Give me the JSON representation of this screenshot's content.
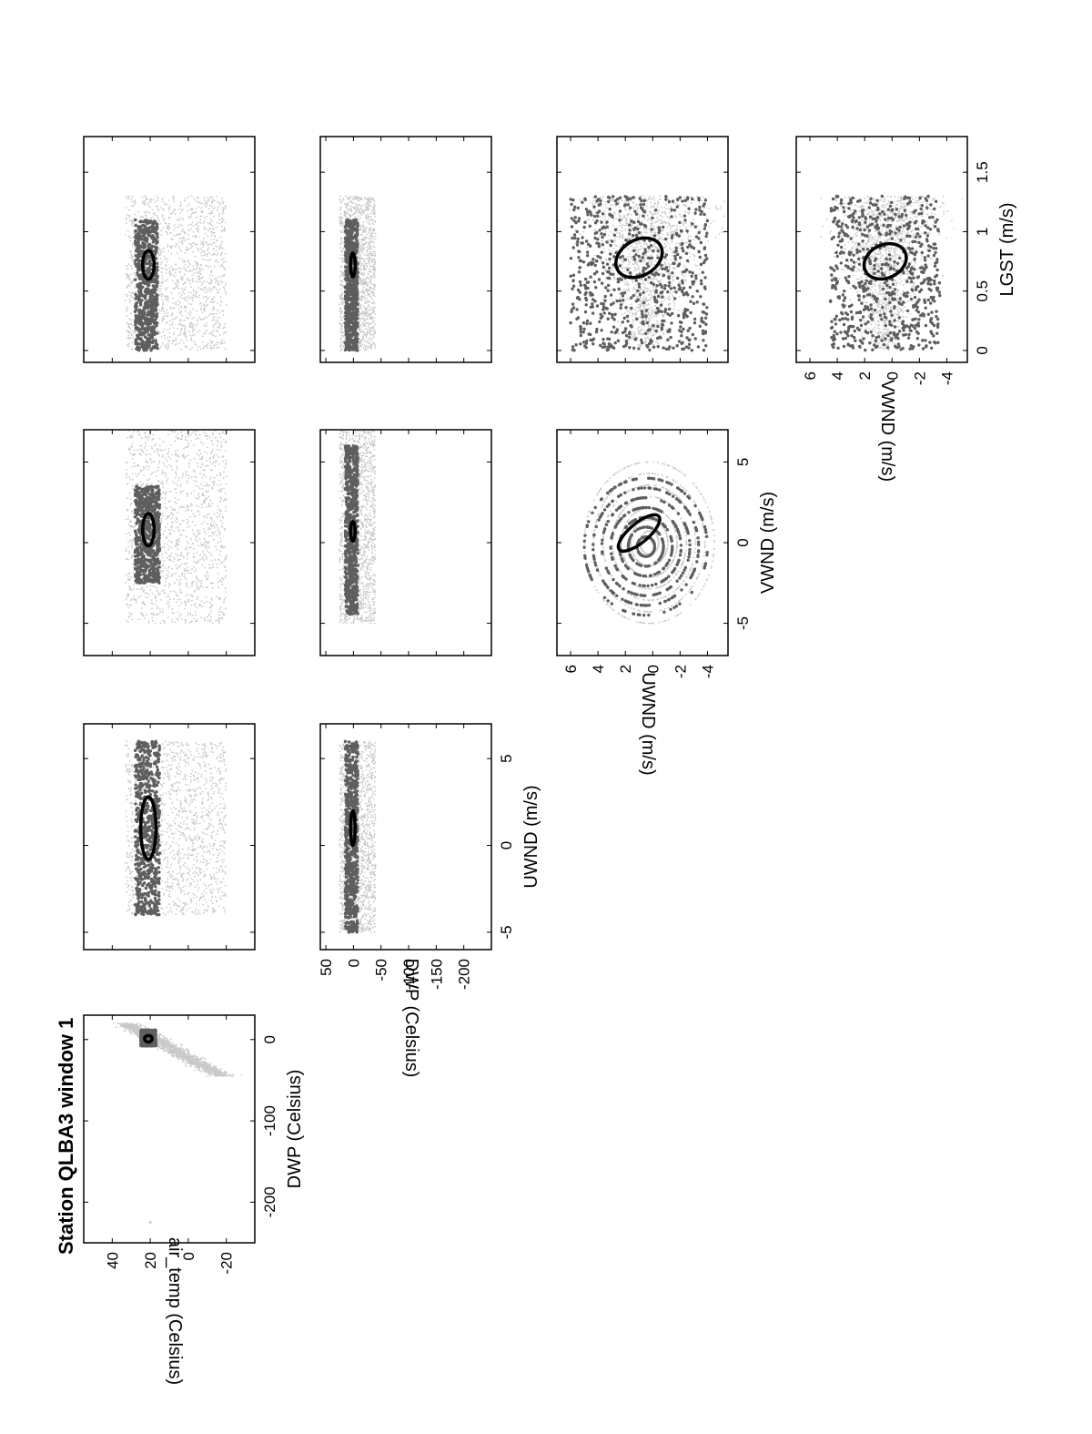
{
  "figure": {
    "title": "Station QLBA3 window 1",
    "orientation": "rotated 90° counter-clockwise (landscape page)",
    "colors": {
      "all_points": "#c8c8c8",
      "core_points": "#5e5e5e",
      "ellipse": "#000000",
      "axes": "#000000"
    }
  },
  "chart_data": [
    {
      "id": "dwp_vs_air_temp",
      "type": "scatter",
      "xlabel": "DWP (Celsius)",
      "ylabel": "air_temp (Celsius)",
      "xticks": [
        -200,
        -100,
        0
      ],
      "yticks": [
        -20,
        0,
        20,
        40
      ],
      "xlim": [
        -250,
        30
      ],
      "ylim": [
        -35,
        55
      ],
      "clusters": {
        "all_points": {
          "x_range": [
            -45,
            20
          ],
          "y_range": [
            -18,
            33
          ],
          "trend": "positive"
        },
        "core_points": {
          "x_range": [
            -8,
            12
          ],
          "y_range": [
            17,
            25
          ]
        },
        "outliers": [
          {
            "x": -225,
            "y": 20
          }
        ]
      },
      "ellipse": {
        "center": [
          1,
          21
        ],
        "semi_x": 4,
        "semi_y": 2
      }
    },
    {
      "id": "uwnd_vs_air_temp",
      "type": "scatter",
      "xlabel": "",
      "ylabel": "",
      "xticks": [
        -5,
        0,
        5
      ],
      "yticks": [
        -20,
        0,
        20,
        40
      ],
      "xlim": [
        -6,
        7
      ],
      "ylim": [
        -35,
        55
      ],
      "clusters": {
        "all_points": {
          "x_range": [
            -4,
            6
          ],
          "y_range": [
            -20,
            33
          ]
        },
        "core_points": {
          "x_range": [
            -4,
            6
          ],
          "y_range": [
            15,
            28
          ]
        }
      },
      "ellipse": {
        "center": [
          1,
          21
        ],
        "semi_x": 1.8,
        "semi_y": 4
      }
    },
    {
      "id": "vwnd_vs_air_temp",
      "type": "scatter",
      "xlabel": "",
      "ylabel": "",
      "xticks": [
        -5,
        0,
        5
      ],
      "yticks": [
        -20,
        0,
        20,
        40
      ],
      "xlim": [
        -7,
        7
      ],
      "ylim": [
        -35,
        55
      ],
      "clusters": {
        "all_points": {
          "x_range": [
            -5,
            7
          ],
          "y_range": [
            -20,
            33
          ]
        },
        "core_points": {
          "x_range": [
            -2.5,
            3.5
          ],
          "y_range": [
            15,
            28
          ]
        }
      },
      "ellipse": {
        "center": [
          0.8,
          21
        ],
        "semi_x": 1,
        "semi_y": 3
      }
    },
    {
      "id": "lgst_vs_air_temp",
      "type": "scatter",
      "xlabel": "",
      "ylabel": "",
      "xticks": [
        0,
        0.5,
        1,
        1.5
      ],
      "yticks": [
        -20,
        0,
        20,
        40
      ],
      "xlim": [
        -0.1,
        1.8
      ],
      "ylim": [
        -35,
        55
      ],
      "clusters": {
        "all_points": {
          "x_range": [
            0,
            1.3
          ],
          "y_range": [
            -20,
            33
          ]
        },
        "core_points": {
          "x_range": [
            0,
            1.1
          ],
          "y_range": [
            16,
            28
          ]
        }
      },
      "ellipse": {
        "center": [
          0.72,
          21
        ],
        "semi_x": 0.12,
        "semi_y": 3
      }
    },
    {
      "id": "uwnd_vs_dwp",
      "type": "scatter",
      "xlabel": "UWND (m/s)",
      "ylabel": "DWP (Celsius)",
      "xticks": [
        -5,
        0,
        5
      ],
      "yticks": [
        -200,
        -150,
        -100,
        -50,
        0,
        50
      ],
      "xlim": [
        -6,
        7
      ],
      "ylim": [
        -250,
        60
      ],
      "clusters": {
        "all_points": {
          "x_range": [
            -5,
            6
          ],
          "y_range": [
            -40,
            25
          ]
        },
        "core_points": {
          "x_range": [
            -5,
            6
          ],
          "y_range": [
            -8,
            15
          ]
        }
      },
      "ellipse": {
        "center": [
          1,
          1
        ],
        "semi_x": 1,
        "semi_y": 4
      }
    },
    {
      "id": "vwnd_vs_dwp",
      "type": "scatter",
      "xlabel": "",
      "ylabel": "",
      "xticks": [
        -5,
        0,
        5
      ],
      "yticks": [
        -200,
        -150,
        -100,
        -50,
        0,
        50
      ],
      "xlim": [
        -7,
        7
      ],
      "ylim": [
        -250,
        60
      ],
      "clusters": {
        "all_points": {
          "x_range": [
            -5,
            7
          ],
          "y_range": [
            -40,
            25
          ]
        },
        "core_points": {
          "x_range": [
            -4.5,
            6
          ],
          "y_range": [
            -8,
            15
          ]
        }
      },
      "ellipse": {
        "center": [
          0.7,
          1
        ],
        "semi_x": 0.6,
        "semi_y": 4
      }
    },
    {
      "id": "lgst_vs_dwp",
      "type": "scatter",
      "xlabel": "",
      "ylabel": "",
      "xticks": [
        0,
        0.5,
        1,
        1.5
      ],
      "yticks": [
        -200,
        -150,
        -100,
        -50,
        0,
        50
      ],
      "xlim": [
        -0.1,
        1.8
      ],
      "ylim": [
        -250,
        60
      ],
      "clusters": {
        "all_points": {
          "x_range": [
            0,
            1.3
          ],
          "y_range": [
            -40,
            25
          ]
        },
        "core_points": {
          "x_range": [
            0,
            1.1
          ],
          "y_range": [
            -8,
            15
          ]
        }
      },
      "ellipse": {
        "center": [
          0.72,
          1
        ],
        "semi_x": 0.1,
        "semi_y": 4
      }
    },
    {
      "id": "vwnd_vs_uwnd",
      "type": "scatter",
      "xlabel": "VWND (m/s)",
      "ylabel": "UWND (m/s)",
      "xticks": [
        -5,
        0,
        5
      ],
      "yticks": [
        -4,
        -2,
        0,
        2,
        4,
        6
      ],
      "xlim": [
        -7,
        7
      ],
      "ylim": [
        -5.5,
        7
      ],
      "clusters": {
        "all_points": {
          "x_range": [
            -5,
            5
          ],
          "y_range": [
            -4.5,
            5
          ],
          "shape": "concentric rings"
        },
        "core_points": {
          "x_range": [
            -4.5,
            4
          ],
          "y_range": [
            -4,
            5
          ]
        }
      },
      "ellipse": {
        "center": [
          0.6,
          1
        ],
        "semi_x": 1.6,
        "semi_y": 0.7,
        "tilt_deg": 50
      }
    },
    {
      "id": "lgst_vs_uwnd",
      "type": "scatter",
      "xlabel": "",
      "ylabel": "",
      "xticks": [
        0,
        0.5,
        1,
        1.5
      ],
      "yticks": [
        -4,
        -2,
        0,
        2,
        4,
        6
      ],
      "xlim": [
        -0.1,
        1.8
      ],
      "ylim": [
        -5.5,
        7
      ],
      "clusters": {
        "all_points": {
          "x_range": [
            0,
            1.3
          ],
          "y_range": [
            -5,
            6
          ],
          "trend": "wedge"
        },
        "core_points": {
          "x_range": [
            0,
            1.3
          ],
          "y_range": [
            -4,
            6
          ]
        }
      },
      "ellipse": {
        "center": [
          0.78,
          1
        ],
        "semi_x": 0.15,
        "semi_y": 1.8,
        "tilt_deg": -30
      }
    },
    {
      "id": "lgst_vs_vwnd",
      "type": "scatter",
      "xlabel": "LGST (m/s)",
      "ylabel": "VWND (m/s)",
      "xticks": [
        0,
        0.5,
        1,
        1.5
      ],
      "yticks": [
        -4,
        -2,
        0,
        2,
        4,
        6
      ],
      "xlim": [
        -0.1,
        1.8
      ],
      "ylim": [
        -5.5,
        7
      ],
      "clusters": {
        "all_points": {
          "x_range": [
            0,
            1.3
          ],
          "y_range": [
            -4,
            5
          ],
          "trend": "wedge"
        },
        "core_points": {
          "x_range": [
            0,
            1.3
          ],
          "y_range": [
            -3.5,
            4.5
          ]
        }
      },
      "ellipse": {
        "center": [
          0.75,
          0.5
        ],
        "semi_x": 0.14,
        "semi_y": 1.6,
        "tilt_deg": -25
      }
    }
  ]
}
